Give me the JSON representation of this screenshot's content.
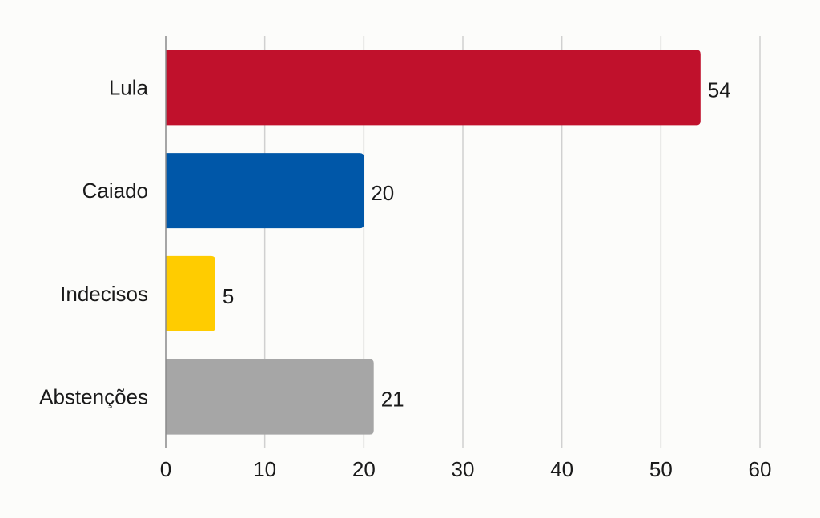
{
  "chart_data": {
    "type": "bar",
    "orientation": "horizontal",
    "title": "",
    "xlabel": "",
    "ylabel": "",
    "categories": [
      "Lula",
      "Caiado",
      "Indecisos",
      "Abstenções"
    ],
    "values": [
      54,
      20,
      5,
      21
    ],
    "colors": [
      "#c0112c",
      "#0057a8",
      "#ffcc00",
      "#a6a6a6"
    ],
    "xlim": [
      0,
      60
    ],
    "xticks": [
      0,
      10,
      20,
      30,
      40,
      50,
      60
    ],
    "grid": true,
    "legend": "none",
    "data_labels": true
  }
}
